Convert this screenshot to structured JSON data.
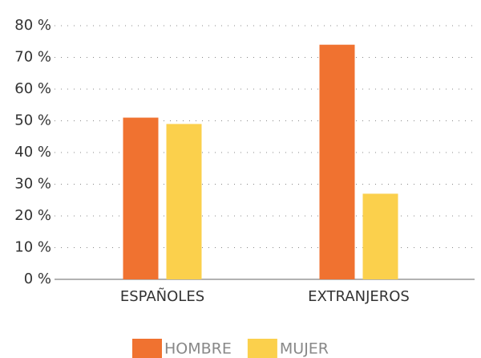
{
  "chart_data": {
    "type": "bar",
    "categories": [
      "ESPAÑOLES",
      "EXTRANJEROS"
    ],
    "series": [
      {
        "name": "HOMBRE",
        "color": "#f07230",
        "values": [
          51,
          74
        ]
      },
      {
        "name": "MUJER",
        "color": "#fbd04c",
        "values": [
          49,
          27
        ]
      }
    ],
    "ylim": [
      0,
      80
    ],
    "yticks": [
      {
        "value": 0,
        "label": "0 %"
      },
      {
        "value": 10,
        "label": "10 %"
      },
      {
        "value": 20,
        "label": "20 %"
      },
      {
        "value": 30,
        "label": "30 %"
      },
      {
        "value": 40,
        "label": "40 %"
      },
      {
        "value": 50,
        "label": "50 %"
      },
      {
        "value": 60,
        "label": "60 %"
      },
      {
        "value": 70,
        "label": "70 %"
      },
      {
        "value": 80,
        "label": "80 %"
      }
    ],
    "grid": true,
    "legend": "bottom"
  }
}
